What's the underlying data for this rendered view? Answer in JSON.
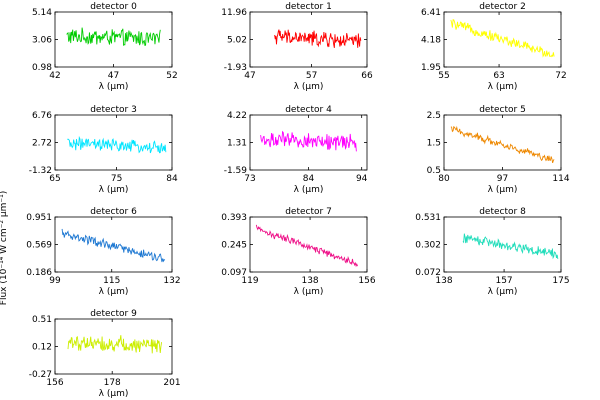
{
  "chart_data": {
    "type": "line",
    "ylabel": "Flux (10⁻¹⁴ W cm⁻² μm⁻¹)",
    "xlabel": "λ (μm)",
    "panels": [
      {
        "title": "detector 0",
        "xticks": [
          "42",
          "47",
          "52"
        ],
        "yticks": [
          "0.98",
          "3.06",
          "5.14"
        ],
        "color": "#00cc00",
        "xlim": [
          42,
          52
        ],
        "ylim": [
          0.98,
          5.14
        ],
        "x_start": 43,
        "x_end": 51,
        "trend_start": 3.3,
        "trend_end": 3.1,
        "noise": 0.55
      },
      {
        "title": "detector 1",
        "xticks": [
          "47",
          "57",
          "66"
        ],
        "yticks": [
          "-1.93",
          "5.02",
          "11.96"
        ],
        "color": "#ff0000",
        "xlim": [
          47,
          66
        ],
        "ylim": [
          -1.93,
          11.96
        ],
        "x_start": 51,
        "x_end": 65,
        "trend_start": 5.8,
        "trend_end": 4.4,
        "noise": 1.7
      },
      {
        "title": "detector 2",
        "xticks": [
          "55",
          "63",
          "72"
        ],
        "yticks": [
          "1.95",
          "4.18",
          "6.41"
        ],
        "color": "#ffff00",
        "xlim": [
          55,
          72
        ],
        "ylim": [
          1.95,
          6.41
        ],
        "x_start": 56,
        "x_end": 71,
        "trend_start": 5.5,
        "trend_end": 2.9,
        "noise": 0.35
      },
      {
        "title": "detector 3",
        "xticks": [
          "65",
          "75",
          "84"
        ],
        "yticks": [
          "-1.32",
          "2.72",
          "6.76"
        ],
        "color": "#00e5ff",
        "xlim": [
          65,
          84
        ],
        "ylim": [
          -1.32,
          6.76
        ],
        "x_start": 67,
        "x_end": 83,
        "trend_start": 2.6,
        "trend_end": 1.9,
        "noise": 0.8
      },
      {
        "title": "detector 4",
        "xticks": [
          "73",
          "84",
          "94"
        ],
        "yticks": [
          "-1.59",
          "1.31",
          "4.22"
        ],
        "color": "#ff00ff",
        "xlim": [
          73,
          95
        ],
        "ylim": [
          -1.59,
          4.22
        ],
        "x_start": 75,
        "x_end": 93,
        "trend_start": 1.6,
        "trend_end": 1.3,
        "noise": 0.75
      },
      {
        "title": "detector 5",
        "xticks": [
          "80",
          "97",
          "114"
        ],
        "yticks": [
          "0.5",
          "1.5",
          "2.5"
        ],
        "color": "#ee8800",
        "xlim": [
          80,
          114
        ],
        "ylim": [
          0.5,
          2.5
        ],
        "x_start": 82,
        "x_end": 112,
        "trend_start": 2.0,
        "trend_end": 0.85,
        "noise": 0.12
      },
      {
        "title": "detector 6",
        "xticks": [
          "99",
          "115",
          "132"
        ],
        "yticks": [
          "0.186",
          "0.569",
          "0.951"
        ],
        "color": "#1e78d2",
        "xlim": [
          99,
          132
        ],
        "ylim": [
          0.186,
          0.951
        ],
        "x_start": 101,
        "x_end": 130,
        "trend_start": 0.72,
        "trend_end": 0.36,
        "noise": 0.055
      },
      {
        "title": "detector 7",
        "xticks": [
          "119",
          "138",
          "156"
        ],
        "yticks": [
          "0.097",
          "0.245",
          "0.393"
        ],
        "color": "#ee1188",
        "xlim": [
          119,
          156
        ],
        "ylim": [
          0.097,
          0.393
        ],
        "x_start": 121,
        "x_end": 153,
        "trend_start": 0.33,
        "trend_end": 0.14,
        "noise": 0.018
      },
      {
        "title": "detector 8",
        "xticks": [
          "138",
          "157",
          "175"
        ],
        "yticks": [
          "0.072",
          "0.302",
          "0.531"
        ],
        "color": "#22ddbb",
        "xlim": [
          138,
          175
        ],
        "ylim": [
          0.072,
          0.531
        ],
        "x_start": 144,
        "x_end": 174,
        "trend_start": 0.36,
        "trend_end": 0.22,
        "noise": 0.035
      },
      {
        "title": "detector 9",
        "xticks": [
          "156",
          "178",
          "201"
        ],
        "yticks": [
          "-0.27",
          "0.12",
          "0.51"
        ],
        "color": "#ccee00",
        "xlim": [
          156,
          201
        ],
        "ylim": [
          -0.27,
          0.51
        ],
        "x_start": 161,
        "x_end": 197,
        "trend_start": 0.18,
        "trend_end": 0.14,
        "noise": 0.1
      }
    ]
  }
}
